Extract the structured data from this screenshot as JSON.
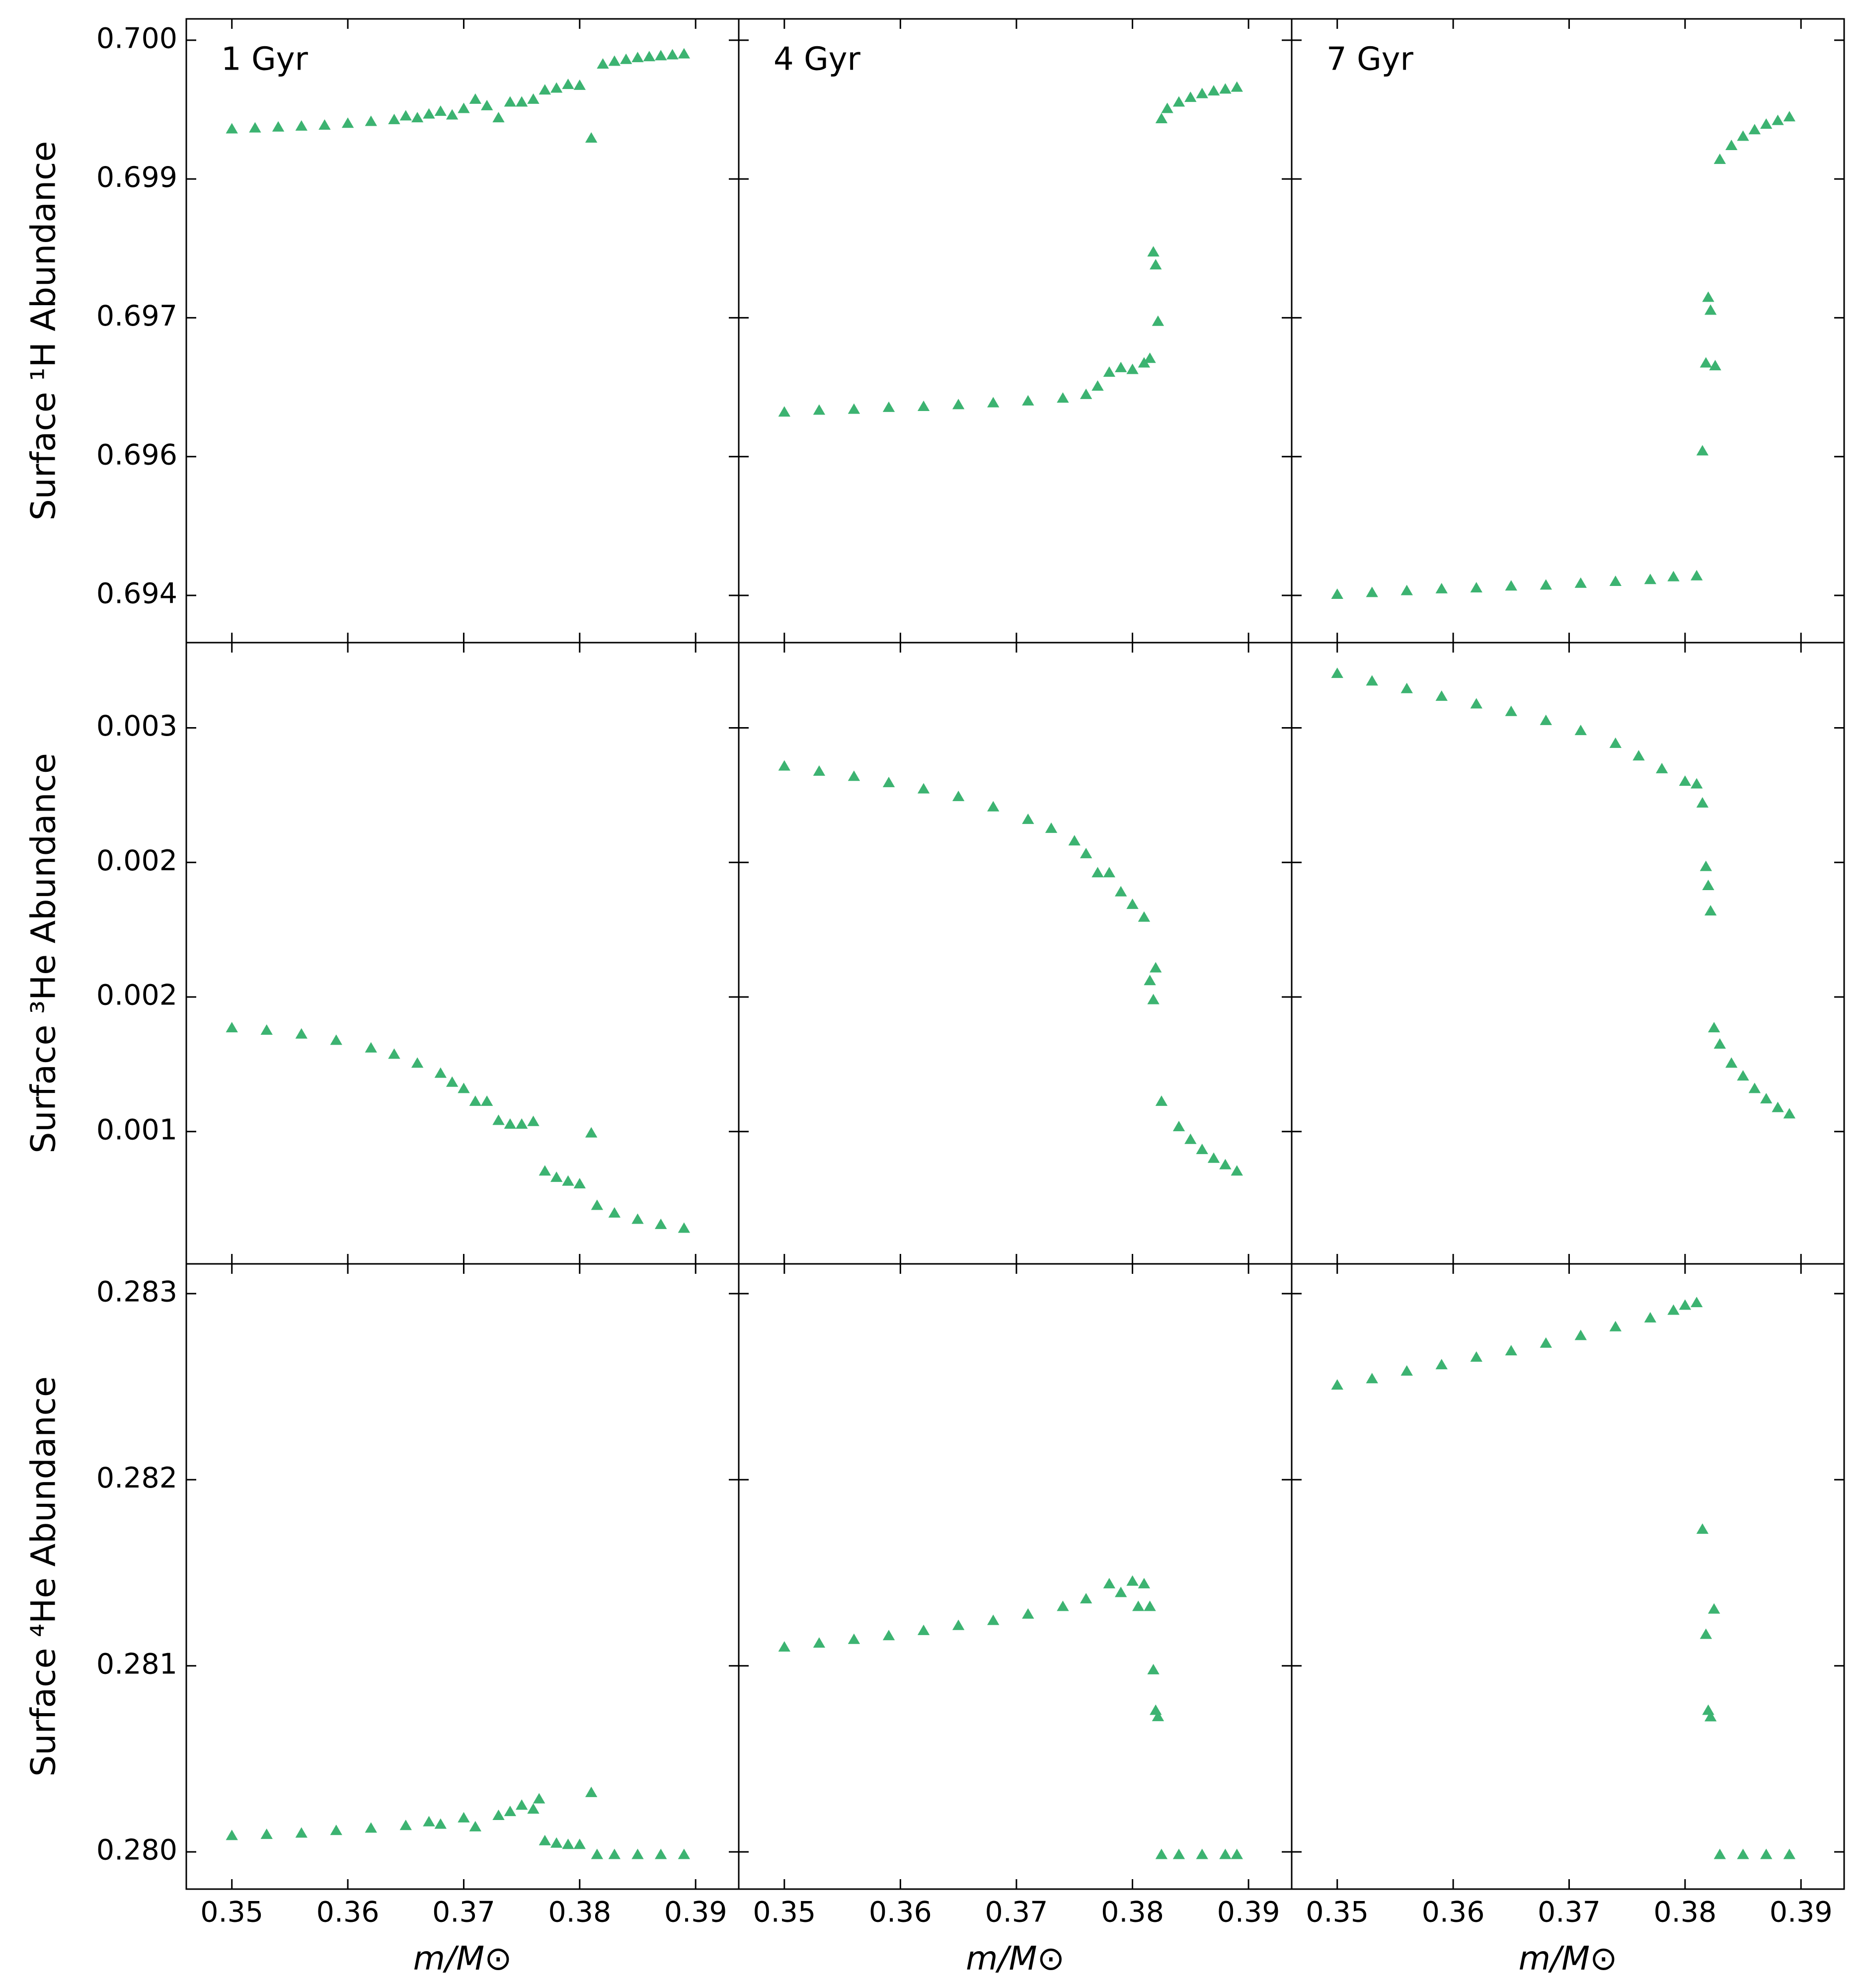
{
  "chart_data": {
    "type": "scatter",
    "xlabel": "m/M⊙",
    "xlim": [
      0.34607,
      0.39372
    ],
    "xticks": [
      0.35,
      0.36,
      0.37,
      0.38,
      0.39
    ],
    "color": "#3cb371",
    "marker": "triangle",
    "titles": [
      "1 Gyr",
      "4 Gyr",
      "7 Gyr"
    ],
    "rows": [
      {
        "ylabel": "Surface ¹H Abundance",
        "ylim": [
          0.69349,
          0.70023
        ],
        "yticks": [
          0.694,
          {
            "value": 0.6955,
            "label": "0.696"
          },
          0.697,
          {
            "value": 0.6985,
            "label": "0.699"
          },
          {
            "value": 0.7,
            "label": "0.700"
          }
        ],
        "panels": [
          {
            "x": [
              0.35,
              0.352,
              0.354,
              0.356,
              0.358,
              0.36,
              0.362,
              0.364,
              0.365,
              0.366,
              0.367,
              0.368,
              0.369,
              0.37,
              0.371,
              0.372,
              0.373,
              0.374,
              0.375,
              0.376,
              0.377,
              0.378,
              0.379,
              0.38,
              0.381,
              0.382,
              0.383,
              0.384,
              0.385,
              0.386,
              0.387,
              0.388,
              0.389
            ],
            "y": [
              0.69903,
              0.69904,
              0.69905,
              0.69906,
              0.69907,
              0.69909,
              0.69911,
              0.69913,
              0.69917,
              0.69915,
              0.69919,
              0.69922,
              0.69918,
              0.69925,
              0.69935,
              0.69928,
              0.69915,
              0.69932,
              0.69932,
              0.69935,
              0.69945,
              0.69947,
              0.69951,
              0.6995,
              0.69893,
              0.69973,
              0.69976,
              0.69978,
              0.6998,
              0.69981,
              0.69982,
              0.69983,
              0.69984
            ]
          },
          {
            "x": [
              0.35,
              0.353,
              0.356,
              0.359,
              0.362,
              0.365,
              0.368,
              0.371,
              0.374,
              0.376,
              0.377,
              0.378,
              0.379,
              0.38,
              0.381,
              0.3815,
              0.3818,
              0.382,
              0.3822,
              0.3825,
              0.383,
              0.384,
              0.385,
              0.386,
              0.387,
              0.388,
              0.389
            ],
            "y": [
              0.69597,
              0.69599,
              0.696,
              0.69602,
              0.69603,
              0.69605,
              0.69607,
              0.69609,
              0.69612,
              0.69616,
              0.69625,
              0.6964,
              0.69645,
              0.69643,
              0.6965,
              0.69655,
              0.6977,
              0.69756,
              0.69695,
              0.69914,
              0.69925,
              0.69932,
              0.69937,
              0.69941,
              0.69944,
              0.69946,
              0.69948
            ]
          },
          {
            "x": [
              0.35,
              0.353,
              0.356,
              0.359,
              0.362,
              0.365,
              0.368,
              0.371,
              0.374,
              0.377,
              0.379,
              0.381,
              0.3815,
              0.3818,
              0.382,
              0.3822,
              0.3826,
              0.383,
              0.384,
              0.385,
              0.386,
              0.387,
              0.388,
              0.389
            ],
            "y": [
              0.694,
              0.69402,
              0.69404,
              0.69406,
              0.69407,
              0.69409,
              0.6941,
              0.69412,
              0.69414,
              0.69416,
              0.69419,
              0.6942,
              0.69555,
              0.6965,
              0.69721,
              0.69707,
              0.69647,
              0.6987,
              0.69885,
              0.69895,
              0.69902,
              0.69908,
              0.69912,
              0.69916
            ]
          }
        ]
      },
      {
        "ylabel": "Surface ³He Abundance",
        "ylim": [
          0.00061,
          0.00338
        ],
        "yticks": [
          {
            "value": 0.0012,
            "label": "0.001"
          },
          {
            "value": 0.0018,
            "label": "0.002"
          },
          {
            "value": 0.0024,
            "label": "0.002"
          },
          0.003
        ],
        "panels": [
          {
            "x": [
              0.35,
              0.353,
              0.356,
              0.359,
              0.362,
              0.364,
              0.366,
              0.368,
              0.369,
              0.37,
              0.371,
              0.372,
              0.373,
              0.374,
              0.375,
              0.376,
              0.377,
              0.378,
              0.379,
              0.38,
              0.381,
              0.3815,
              0.383,
              0.385,
              0.387,
              0.389
            ],
            "y": [
              0.001658,
              0.001647,
              0.00163,
              0.001602,
              0.001568,
              0.00154,
              0.0015,
              0.001455,
              0.001415,
              0.001387,
              0.00133,
              0.00133,
              0.001245,
              0.001228,
              0.001228,
              0.00124,
              0.001019,
              0.000991,
              0.000974,
              0.000962,
              0.001189,
              0.000866,
              0.000832,
              0.000804,
              0.000781,
              0.000764
            ]
          },
          {
            "x": [
              0.35,
              0.353,
              0.356,
              0.359,
              0.362,
              0.365,
              0.368,
              0.371,
              0.373,
              0.375,
              0.376,
              0.377,
              0.378,
              0.379,
              0.38,
              0.381,
              0.3815,
              0.3818,
              0.382,
              0.3825,
              0.384,
              0.385,
              0.386,
              0.387,
              0.388,
              0.389
            ],
            "y": [
              0.002825,
              0.002802,
              0.002779,
              0.002751,
              0.002723,
              0.002689,
              0.002643,
              0.002587,
              0.002547,
              0.002491,
              0.002434,
              0.002349,
              0.002349,
              0.002264,
              0.002208,
              0.002151,
              0.001868,
              0.001783,
              0.001925,
              0.00133,
              0.001217,
              0.00116,
              0.001115,
              0.001076,
              0.001047,
              0.001019
            ]
          },
          {
            "x": [
              0.35,
              0.353,
              0.356,
              0.359,
              0.362,
              0.365,
              0.368,
              0.371,
              0.374,
              0.376,
              0.378,
              0.38,
              0.381,
              0.3815,
              0.3818,
              0.382,
              0.3822,
              0.3825,
              0.383,
              0.384,
              0.385,
              0.386,
              0.387,
              0.388,
              0.389
            ],
            "y": [
              0.003238,
              0.003204,
              0.00317,
              0.003136,
              0.003102,
              0.003068,
              0.003028,
              0.002983,
              0.002926,
              0.00287,
              0.002813,
              0.002757,
              0.002745,
              0.00266,
              0.002377,
              0.002292,
              0.002179,
              0.001658,
              0.001585,
              0.0015,
              0.001443,
              0.001387,
              0.001341,
              0.001302,
              0.001274
            ]
          }
        ]
      },
      {
        "ylabel": "Surface ⁴He Abundance",
        "ylim": [
          0.2798,
          0.28316
        ],
        "yticks": [
          {
            "value": 0.28,
            "label": "0.280"
          },
          0.281,
          0.282,
          0.283
        ],
        "panels": [
          {
            "x": [
              0.35,
              0.353,
              0.356,
              0.359,
              0.362,
              0.365,
              0.367,
              0.368,
              0.37,
              0.371,
              0.373,
              0.374,
              0.375,
              0.376,
              0.3765,
              0.377,
              0.378,
              0.379,
              0.38,
              0.381,
              0.3815,
              0.383,
              0.385,
              0.387,
              0.389
            ],
            "y": [
              0.280082,
              0.280088,
              0.280095,
              0.280109,
              0.280122,
              0.280136,
              0.280156,
              0.280143,
              0.280177,
              0.280129,
              0.28019,
              0.280211,
              0.280245,
              0.280224,
              0.280279,
              0.280054,
              0.280041,
              0.280034,
              0.280034,
              0.280313,
              0.27998,
              0.27998,
              0.27998,
              0.27998,
              0.27998
            ]
          },
          {
            "x": [
              0.35,
              0.353,
              0.356,
              0.359,
              0.362,
              0.365,
              0.368,
              0.371,
              0.374,
              0.376,
              0.378,
              0.379,
              0.38,
              0.3805,
              0.381,
              0.3815,
              0.3818,
              0.382,
              0.3822,
              0.3825,
              0.384,
              0.386,
              0.388,
              0.389
            ],
            "y": [
              0.281095,
              0.281116,
              0.281136,
              0.281156,
              0.281184,
              0.281211,
              0.281238,
              0.281272,
              0.281313,
              0.281354,
              0.281435,
              0.281388,
              0.281449,
              0.281313,
              0.281435,
              0.281313,
              0.280973,
              0.280755,
              0.280721,
              0.27998,
              0.27998,
              0.27998,
              0.27998,
              0.27998
            ]
          },
          {
            "x": [
              0.35,
              0.353,
              0.356,
              0.359,
              0.362,
              0.365,
              0.368,
              0.371,
              0.374,
              0.377,
              0.379,
              0.38,
              0.381,
              0.3815,
              0.3818,
              0.382,
              0.3822,
              0.3825,
              0.383,
              0.385,
              0.387,
              0.389
            ],
            "y": [
              0.282503,
              0.282537,
              0.282578,
              0.282612,
              0.282653,
              0.282687,
              0.282728,
              0.282769,
              0.282816,
              0.282864,
              0.282905,
              0.282932,
              0.282946,
              0.281728,
              0.281163,
              0.280755,
              0.28072,
              0.281299,
              0.27998,
              0.27998,
              0.27998,
              0.27998
            ]
          }
        ]
      }
    ]
  }
}
